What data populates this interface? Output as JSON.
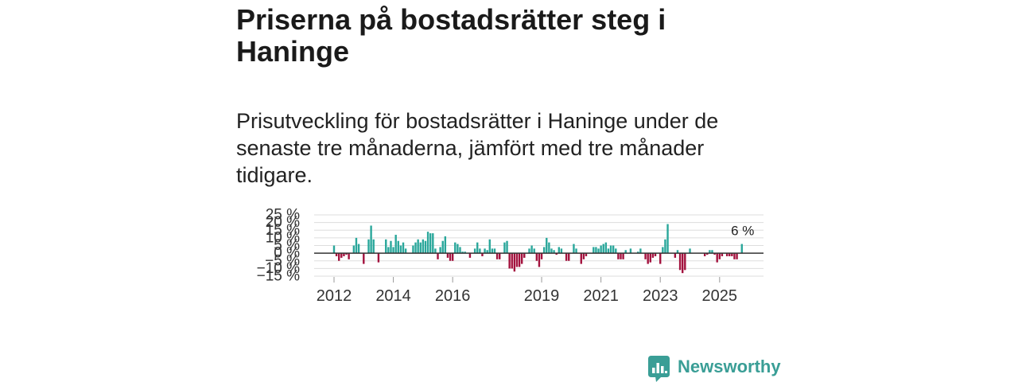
{
  "chart_data": {
    "type": "bar",
    "title": "Priserna på bostadsrätter steg i Haninge",
    "subtitle": "Prisutveckling för bostadsrätter i Haninge under de senaste tre månaderna, jämfört med tre månader tidigare.",
    "start_year": 2012,
    "start_month": 1,
    "months_per_bar": 1,
    "values": [
      5,
      -2,
      -5,
      -3,
      -2,
      -1,
      -4,
      0,
      5,
      10,
      6,
      0,
      -7,
      0,
      9,
      18,
      9,
      0,
      -6,
      0,
      0,
      9,
      4,
      8,
      4,
      12,
      8,
      5,
      7,
      3,
      0,
      0,
      5,
      7,
      9,
      7,
      9,
      8,
      14,
      13,
      13,
      3,
      -4,
      4,
      8,
      11,
      -3,
      -5,
      -5,
      7,
      6,
      4,
      1,
      1,
      0,
      -3,
      0,
      3,
      7,
      3,
      -2,
      3,
      2,
      9,
      3,
      3,
      -4,
      -4,
      0,
      7,
      8,
      -10,
      -10,
      -12,
      -9,
      -9,
      -7,
      -3,
      0,
      3,
      5,
      3,
      -5,
      -9,
      -4,
      4,
      10,
      7,
      3,
      2,
      -1,
      4,
      3,
      0,
      -5,
      -5,
      0,
      6,
      3,
      0,
      -7,
      -4,
      -2,
      0,
      0,
      4,
      4,
      3,
      5,
      6,
      7,
      3,
      5,
      5,
      3,
      -4,
      -4,
      -4,
      2,
      0,
      3,
      0,
      0,
      1,
      3,
      0,
      -4,
      -7,
      -6,
      -3,
      -2,
      0,
      -7,
      4,
      9,
      19,
      0,
      0,
      -3,
      2,
      -11,
      -13,
      -11,
      0,
      3,
      0,
      0,
      0,
      0,
      0,
      -2,
      -1,
      2,
      2,
      -1,
      -6,
      -4,
      -2,
      0,
      -2,
      -2,
      -2,
      -4,
      -4,
      0,
      6
    ],
    "xlim": [
      2011.33,
      2026.48
    ],
    "ylim": [
      -15,
      25
    ],
    "grid": true,
    "y_ticks": [
      {
        "value": 25,
        "label": "25 %"
      },
      {
        "value": 20,
        "label": "20 %"
      },
      {
        "value": 15,
        "label": "15 %"
      },
      {
        "value": 10,
        "label": "10 %"
      },
      {
        "value": 5,
        "label": "5 %"
      },
      {
        "value": 0,
        "label": "0 %"
      },
      {
        "value": -5,
        "label": "−5 %"
      },
      {
        "value": -10,
        "label": "−10 %"
      },
      {
        "value": -15,
        "label": "−15 %"
      }
    ],
    "x_ticks": [
      {
        "value": 2012,
        "label": "2012"
      },
      {
        "value": 2014,
        "label": "2014"
      },
      {
        "value": 2016,
        "label": "2016"
      },
      {
        "value": 2019,
        "label": "2019"
      },
      {
        "value": 2021,
        "label": "2021"
      },
      {
        "value": 2023,
        "label": "2023"
      },
      {
        "value": 2025,
        "label": "2025"
      }
    ],
    "annotation": {
      "text": "6 %",
      "value": 6,
      "bar_index": 165
    }
  },
  "colors": {
    "positive": "#2aa79b",
    "negative": "#a3123e",
    "grid": "#dddddd",
    "zero_line": "#333333",
    "tick": "#999999",
    "logo": "#3a9e96"
  },
  "logo": {
    "text": "Newsworthy",
    "icon": "newsworthy-bar-chart-bubble-icon"
  }
}
